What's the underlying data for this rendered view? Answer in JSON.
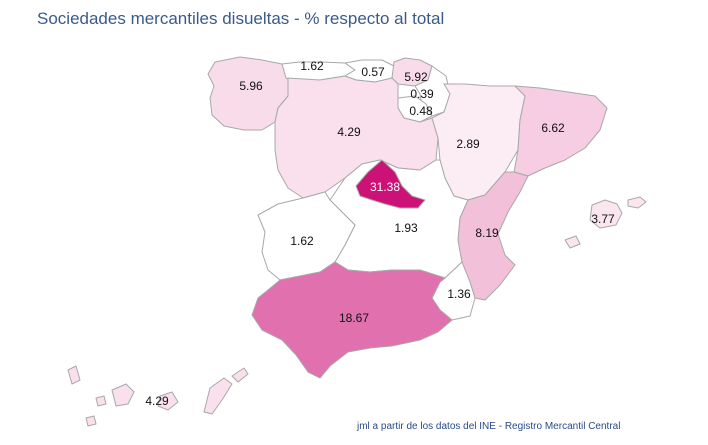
{
  "title": "Sociedades mercantiles disueltas - % respecto al total",
  "source": "jml a partir de los datos del INE - Registro Mercantil Central",
  "regions": [
    {
      "id": "galicia",
      "value": "5.96",
      "color": "#f8dcea"
    },
    {
      "id": "asturias",
      "value": "1.62",
      "color": "#ffffff"
    },
    {
      "id": "cantabria",
      "value": "0.57",
      "color": "#ffffff"
    },
    {
      "id": "pais-vasco",
      "value": "5.92",
      "color": "#f8dcea"
    },
    {
      "id": "navarra",
      "value": "0.39",
      "color": "#ffffff"
    },
    {
      "id": "la-rioja",
      "value": "0.48",
      "color": "#ffffff"
    },
    {
      "id": "aragon",
      "value": "2.89",
      "color": "#fcedf4"
    },
    {
      "id": "cataluna",
      "value": "6.62",
      "color": "#f6cde2"
    },
    {
      "id": "castilla-leon",
      "value": "4.29",
      "color": "#f9e0ec"
    },
    {
      "id": "madrid",
      "value": "31.38",
      "color": "#cc1177"
    },
    {
      "id": "castilla-la-mancha",
      "value": "1.93",
      "color": "#ffffff"
    },
    {
      "id": "extremadura",
      "value": "1.62",
      "color": "#ffffff"
    },
    {
      "id": "valencia",
      "value": "8.19",
      "color": "#f3c0da"
    },
    {
      "id": "baleares",
      "value": "3.77",
      "color": "#fbe6f0"
    },
    {
      "id": "murcia",
      "value": "1.36",
      "color": "#ffffff"
    },
    {
      "id": "andalucia",
      "value": "18.67",
      "color": "#e070ae"
    },
    {
      "id": "canarias",
      "value": "4.29",
      "color": "#f9e0ec"
    }
  ]
}
